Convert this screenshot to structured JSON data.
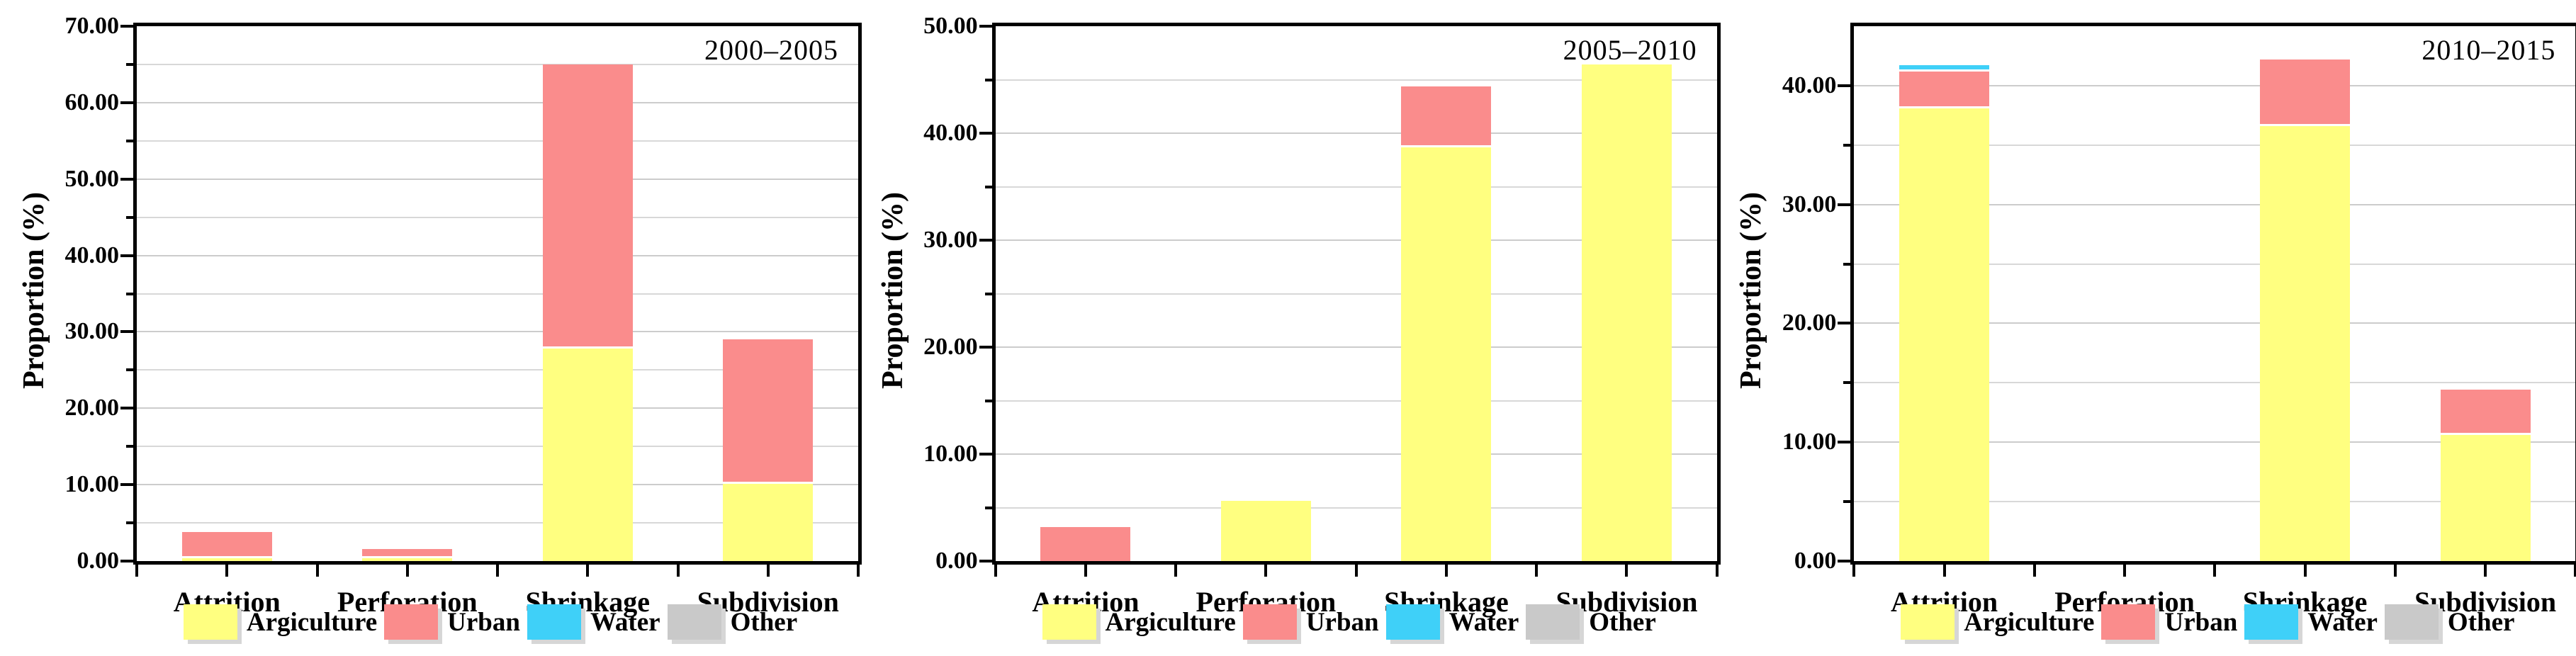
{
  "figure": {
    "y_axis_title": "Proportion (%)",
    "categories": [
      "Attrition",
      "Perforation",
      "Shrinkage",
      "Subdivision"
    ],
    "legend": [
      {
        "label": "Argiculture",
        "color": "#ffff80"
      },
      {
        "label": "Urban",
        "color": "#fa8c8c"
      },
      {
        "label": "Water",
        "color": "#3fd0f8"
      },
      {
        "label": "Other",
        "color": "#c9c9c9"
      }
    ],
    "colors": {
      "agriculture": "#ffff80",
      "urban": "#fa8c8c",
      "water": "#3fd0f8",
      "other": "#c9c9c9",
      "gridline": "#d8d8d8",
      "axis": "#000000"
    }
  },
  "chart_data": [
    {
      "type": "bar",
      "stacked": true,
      "title": "2000–2005",
      "categories": [
        "Attrition",
        "Perforation",
        "Shrinkage",
        "Subdivision"
      ],
      "series": [
        {
          "name": "Argiculture",
          "values": [
            0.4,
            0.4,
            27.8,
            10.1
          ]
        },
        {
          "name": "Urban",
          "values": [
            3.4,
            1.2,
            37.2,
            18.9
          ]
        },
        {
          "name": "Water",
          "values": [
            0,
            0,
            0,
            0
          ]
        },
        {
          "name": "Other",
          "values": [
            0,
            0,
            0,
            0
          ]
        }
      ],
      "xlabel": "",
      "ylabel": "Proportion (%)",
      "ylim": [
        0,
        70
      ],
      "ytick_step": 10,
      "minor_tick_step": 5,
      "ytick_labels": [
        "0.00",
        "10.00",
        "20.00",
        "30.00",
        "40.00",
        "50.00",
        "60.00",
        "70.00"
      ],
      "grid": true,
      "legend_position": "bottom"
    },
    {
      "type": "bar",
      "stacked": true,
      "title": "2005–2010",
      "categories": [
        "Attrition",
        "Perforation",
        "Shrinkage",
        "Subdivision"
      ],
      "series": [
        {
          "name": "Argiculture",
          "values": [
            0,
            5.6,
            38.7,
            46.4
          ]
        },
        {
          "name": "Urban",
          "values": [
            3.2,
            0,
            5.7,
            0
          ]
        },
        {
          "name": "Water",
          "values": [
            0,
            0,
            0,
            0
          ]
        },
        {
          "name": "Other",
          "values": [
            0,
            0,
            0,
            0
          ]
        }
      ],
      "xlabel": "",
      "ylabel": "Proportion (%)",
      "ylim": [
        0,
        50
      ],
      "ytick_step": 10,
      "minor_tick_step": 5,
      "ytick_labels": [
        "0.00",
        "10.00",
        "20.00",
        "30.00",
        "40.00",
        "50.00"
      ],
      "grid": true,
      "legend_position": "bottom"
    },
    {
      "type": "bar",
      "stacked": true,
      "title": "2010–2015",
      "categories": [
        "Attrition",
        "Perforation",
        "Shrinkage",
        "Subdivision"
      ],
      "series": [
        {
          "name": "Argiculture",
          "values": [
            38.1,
            0,
            36.6,
            10.6
          ]
        },
        {
          "name": "Urban",
          "values": [
            3.1,
            0,
            5.6,
            3.8
          ]
        },
        {
          "name": "Water",
          "values": [
            0.5,
            0,
            0,
            0
          ]
        },
        {
          "name": "Other",
          "values": [
            0,
            0,
            0,
            0
          ]
        }
      ],
      "xlabel": "",
      "ylabel": "Proportion (%)",
      "ylim": [
        0,
        45
      ],
      "ytick_step": 10,
      "minor_tick_step": 5,
      "ytick_labels": [
        "0.00",
        "10.00",
        "20.00",
        "30.00",
        "40.00"
      ],
      "grid": true,
      "legend_position": "bottom"
    }
  ]
}
